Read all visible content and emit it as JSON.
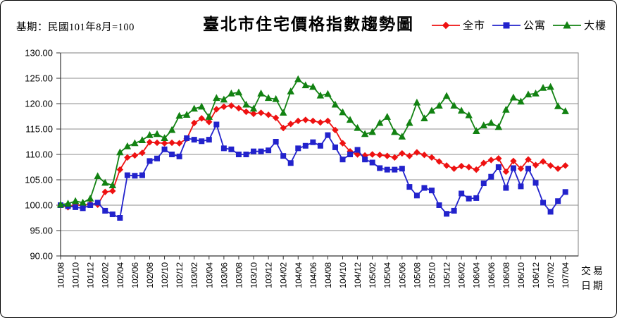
{
  "header": {
    "base_note": "基期：民國101年8月=100",
    "title": "臺北市住宅價格指數趨勢圖"
  },
  "axis": {
    "x_axis_label_line1": "交易",
    "x_axis_label_line2": "日期"
  },
  "chart_data": {
    "type": "line",
    "title": "臺北市住宅價格指數趨勢圖",
    "base_note": "基期：民國101年8月=100",
    "ylim": [
      90,
      130
    ],
    "ystep": 5,
    "x_label_every": 2,
    "grid": true,
    "legend_position": "top-right",
    "categories": [
      "101/08",
      "101/09",
      "101/10",
      "101/11",
      "101/12",
      "102/01",
      "102/02",
      "102/03",
      "102/04",
      "102/05",
      "102/06",
      "102/07",
      "102/08",
      "102/09",
      "102/10",
      "102/11",
      "102/12",
      "103/01",
      "103/02",
      "103/03",
      "103/04",
      "103/05",
      "103/06",
      "103/07",
      "103/08",
      "103/09",
      "103/10",
      "103/11",
      "103/12",
      "104/01",
      "104/02",
      "104/03",
      "104/04",
      "104/05",
      "104/06",
      "104/07",
      "104/08",
      "104/09",
      "104/10",
      "104/11",
      "104/12",
      "105/01",
      "105/02",
      "105/03",
      "105/04",
      "105/05",
      "105/06",
      "105/07",
      "105/08",
      "105/09",
      "105/10",
      "105/11",
      "105/12",
      "106/01",
      "106/02",
      "106/03",
      "106/04",
      "106/05",
      "106/06",
      "106/07",
      "106/08",
      "106/09",
      "106/10",
      "106/11",
      "106/12",
      "107/01",
      "107/02",
      "107/03",
      "107/04"
    ],
    "series": [
      {
        "name": "全市",
        "color": "#ee1111",
        "marker": "diamond",
        "values": [
          100.0,
          99.6,
          100.1,
          99.9,
          100.3,
          100.1,
          102.6,
          102.8,
          107.0,
          109.4,
          109.8,
          110.3,
          112.4,
          112.3,
          112.2,
          112.3,
          112.2,
          113.1,
          116.2,
          117.1,
          116.4,
          118.9,
          119.4,
          119.6,
          119.1,
          118.4,
          118.0,
          118.2,
          117.8,
          117.2,
          115.2,
          116.0,
          116.6,
          116.8,
          116.6,
          116.3,
          116.6,
          114.8,
          112.2,
          110.6,
          110.0,
          109.8,
          110.0,
          109.9,
          109.7,
          109.4,
          110.2,
          109.7,
          110.4,
          109.9,
          109.4,
          108.6,
          107.8,
          107.2,
          107.7,
          107.5,
          107.0,
          108.3,
          108.9,
          109.2,
          106.6,
          108.7,
          107.2,
          109.0,
          107.9,
          108.6,
          107.8,
          107.2,
          107.8
        ]
      },
      {
        "name": "公寓",
        "color": "#2222cc",
        "marker": "square",
        "values": [
          100.0,
          99.8,
          99.6,
          99.4,
          100.0,
          100.5,
          98.9,
          98.2,
          97.5,
          105.9,
          105.8,
          105.9,
          108.7,
          109.2,
          111.0,
          110.0,
          109.6,
          113.2,
          112.9,
          112.6,
          112.9,
          115.9,
          111.2,
          111.0,
          110.0,
          110.0,
          110.6,
          110.6,
          110.8,
          112.5,
          109.7,
          108.3,
          111.2,
          111.7,
          112.4,
          111.7,
          113.8,
          111.4,
          109.0,
          110.0,
          110.9,
          109.0,
          108.4,
          107.3,
          107.0,
          107.0,
          107.2,
          103.6,
          101.9,
          103.4,
          102.9,
          100.0,
          98.3,
          98.9,
          102.3,
          101.3,
          101.4,
          104.3,
          105.6,
          107.5,
          103.4,
          107.3,
          103.7,
          107.2,
          104.4,
          100.5,
          98.7,
          100.8,
          102.6
        ]
      },
      {
        "name": "大樓",
        "color": "#128212",
        "marker": "triangle",
        "values": [
          100.1,
          100.3,
          100.8,
          100.5,
          101.3,
          105.7,
          104.4,
          103.9,
          110.4,
          111.6,
          112.2,
          112.8,
          113.8,
          114.0,
          113.2,
          114.8,
          117.6,
          117.8,
          119.0,
          119.4,
          117.4,
          121.1,
          120.8,
          122.0,
          122.2,
          119.8,
          119.0,
          122.0,
          121.1,
          120.9,
          118.2,
          122.4,
          124.8,
          123.6,
          123.3,
          121.6,
          121.9,
          119.8,
          118.3,
          116.8,
          115.2,
          114.0,
          114.4,
          116.2,
          117.4,
          114.4,
          113.5,
          116.2,
          120.2,
          117.1,
          118.6,
          119.6,
          121.5,
          119.6,
          118.6,
          117.7,
          114.6,
          115.7,
          116.2,
          115.4,
          118.8,
          121.2,
          120.4,
          121.8,
          122.0,
          123.1,
          123.3,
          119.5,
          118.5
        ]
      }
    ]
  }
}
